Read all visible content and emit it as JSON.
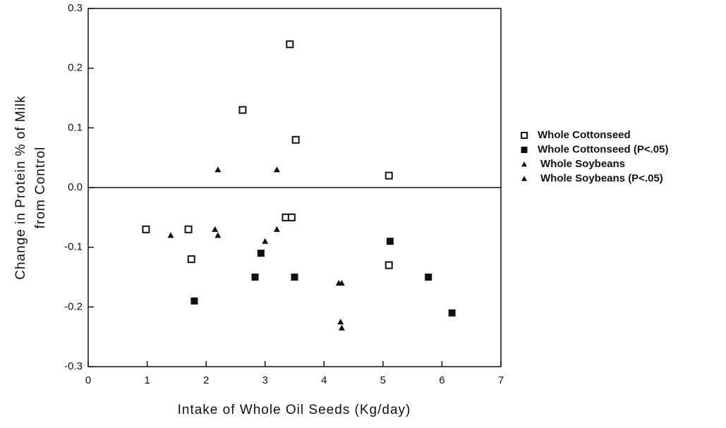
{
  "chart_data": {
    "type": "scatter",
    "xlabel": "Intake of Whole Oil Seeds (Kg/day)",
    "ylabel": [
      "Change in Protein % of Milk",
      "from Control"
    ],
    "xlim": [
      0,
      7
    ],
    "ylim": [
      -0.3,
      0.3
    ],
    "xticks": [
      0,
      1,
      2,
      3,
      4,
      5,
      6,
      7
    ],
    "yticks": [
      -0.3,
      -0.2,
      -0.1,
      {
        "value": 0,
        "label": "0.0"
      },
      0.1,
      0.2,
      0.3
    ],
    "zero_line": true,
    "legend": "right",
    "series": [
      {
        "name": "Whole Cottonseed",
        "color": "#111111",
        "marker": "open-square",
        "x": [
          3.42,
          2.62,
          3.52,
          5.1,
          0.98,
          1.7,
          1.75,
          3.35,
          3.45,
          5.1
        ],
        "values": [
          0.24,
          0.13,
          0.08,
          0.02,
          -0.07,
          -0.07,
          -0.12,
          -0.05,
          -0.05,
          -0.13
        ]
      },
      {
        "name": "Whole Cottonseed (P<.05)",
        "color": "#111111",
        "marker": "square",
        "x": [
          1.8,
          2.93,
          2.83,
          3.5,
          5.12,
          5.77,
          6.17
        ],
        "values": [
          -0.19,
          -0.11,
          -0.15,
          -0.15,
          -0.09,
          -0.15,
          -0.21
        ]
      },
      {
        "name": "Whole Soybeans",
        "color": "#111111",
        "marker": "triangle",
        "x": [
          2.2,
          3.2,
          1.4,
          2.15,
          2.2,
          3.0,
          3.2,
          4.3,
          4.3
        ],
        "values": [
          0.03,
          0.03,
          -0.08,
          -0.07,
          -0.08,
          -0.09,
          -0.07,
          -0.16,
          -0.235
        ]
      },
      {
        "name": "Whole Soybeans (P<.05)",
        "color": "#111111",
        "marker": "triangle",
        "x": [
          4.25,
          4.28
        ],
        "values": [
          -0.16,
          -0.225
        ]
      }
    ]
  }
}
